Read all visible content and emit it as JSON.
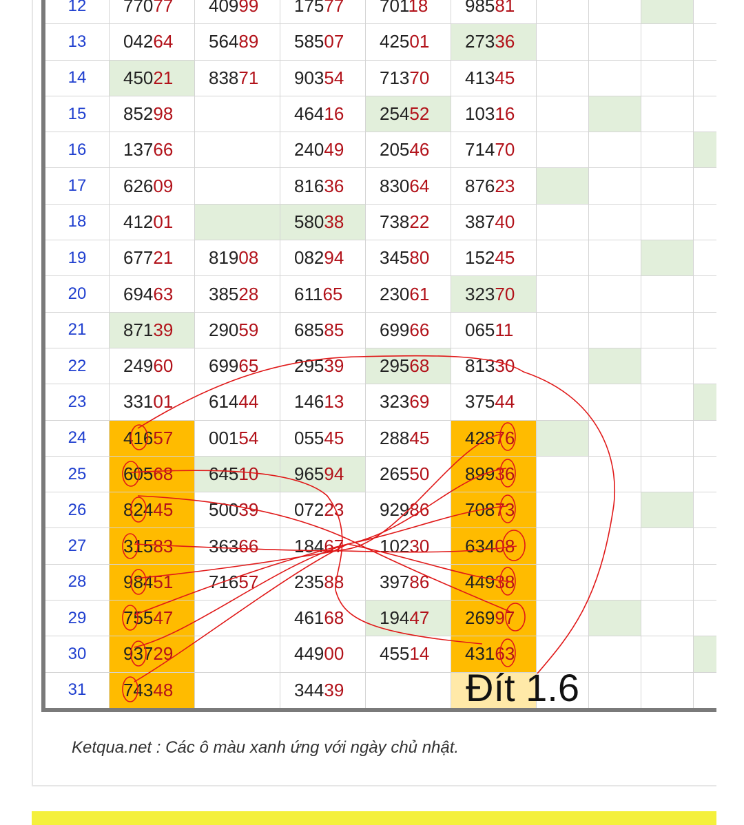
{
  "rows": [
    {
      "day": "12",
      "cells": [
        {
          "h": "770",
          "t": "77",
          "bg": ""
        },
        {
          "h": "409",
          "t": "99",
          "bg": ""
        },
        {
          "h": "175",
          "t": "77",
          "bg": ""
        },
        {
          "h": "701",
          "t": "18",
          "bg": ""
        },
        {
          "h": "985",
          "t": "81",
          "bg": ""
        }
      ],
      "extra": [
        "",
        "",
        "green",
        ""
      ]
    },
    {
      "day": "13",
      "cells": [
        {
          "h": "042",
          "t": "64",
          "bg": ""
        },
        {
          "h": "564",
          "t": "89",
          "bg": ""
        },
        {
          "h": "585",
          "t": "07",
          "bg": ""
        },
        {
          "h": "425",
          "t": "01",
          "bg": ""
        },
        {
          "h": "273",
          "t": "36",
          "bg": "green"
        }
      ],
      "extra": [
        "",
        "",
        "",
        ""
      ]
    },
    {
      "day": "14",
      "cells": [
        {
          "h": "450",
          "t": "21",
          "bg": "green"
        },
        {
          "h": "838",
          "t": "71",
          "bg": ""
        },
        {
          "h": "903",
          "t": "54",
          "bg": ""
        },
        {
          "h": "713",
          "t": "70",
          "bg": ""
        },
        {
          "h": "413",
          "t": "45",
          "bg": ""
        }
      ],
      "extra": [
        "",
        "",
        "",
        ""
      ]
    },
    {
      "day": "15",
      "cells": [
        {
          "h": "852",
          "t": "98",
          "bg": ""
        },
        {
          "h": "",
          "t": "",
          "bg": ""
        },
        {
          "h": "464",
          "t": "16",
          "bg": ""
        },
        {
          "h": "254",
          "t": "52",
          "bg": "green"
        },
        {
          "h": "103",
          "t": "16",
          "bg": ""
        }
      ],
      "extra": [
        "",
        "green",
        "",
        ""
      ]
    },
    {
      "day": "16",
      "cells": [
        {
          "h": "137",
          "t": "66",
          "bg": ""
        },
        {
          "h": "",
          "t": "",
          "bg": ""
        },
        {
          "h": "240",
          "t": "49",
          "bg": ""
        },
        {
          "h": "205",
          "t": "46",
          "bg": ""
        },
        {
          "h": "714",
          "t": "70",
          "bg": ""
        }
      ],
      "extra": [
        "",
        "",
        "",
        "green"
      ]
    },
    {
      "day": "17",
      "cells": [
        {
          "h": "626",
          "t": "09",
          "bg": ""
        },
        {
          "h": "",
          "t": "",
          "bg": ""
        },
        {
          "h": "816",
          "t": "36",
          "bg": ""
        },
        {
          "h": "830",
          "t": "64",
          "bg": ""
        },
        {
          "h": "876",
          "t": "23",
          "bg": ""
        }
      ],
      "extra": [
        "green",
        "",
        "",
        ""
      ]
    },
    {
      "day": "18",
      "cells": [
        {
          "h": "412",
          "t": "01",
          "bg": ""
        },
        {
          "h": "",
          "t": "",
          "bg": "green"
        },
        {
          "h": "580",
          "t": "38",
          "bg": "green"
        },
        {
          "h": "738",
          "t": "22",
          "bg": ""
        },
        {
          "h": "387",
          "t": "40",
          "bg": ""
        }
      ],
      "extra": [
        "",
        "",
        "",
        ""
      ]
    },
    {
      "day": "19",
      "cells": [
        {
          "h": "677",
          "t": "21",
          "bg": ""
        },
        {
          "h": "819",
          "t": "08",
          "bg": ""
        },
        {
          "h": "082",
          "t": "94",
          "bg": ""
        },
        {
          "h": "345",
          "t": "80",
          "bg": ""
        },
        {
          "h": "152",
          "t": "45",
          "bg": ""
        }
      ],
      "extra": [
        "",
        "",
        "green",
        ""
      ]
    },
    {
      "day": "20",
      "cells": [
        {
          "h": "694",
          "t": "63",
          "bg": ""
        },
        {
          "h": "385",
          "t": "28",
          "bg": ""
        },
        {
          "h": "611",
          "t": "65",
          "bg": ""
        },
        {
          "h": "230",
          "t": "61",
          "bg": ""
        },
        {
          "h": "323",
          "t": "70",
          "bg": "green"
        }
      ],
      "extra": [
        "",
        "",
        "",
        ""
      ]
    },
    {
      "day": "21",
      "cells": [
        {
          "h": "871",
          "t": "39",
          "bg": "green"
        },
        {
          "h": "290",
          "t": "59",
          "bg": ""
        },
        {
          "h": "685",
          "t": "85",
          "bg": ""
        },
        {
          "h": "699",
          "t": "66",
          "bg": ""
        },
        {
          "h": "065",
          "t": "11",
          "bg": ""
        }
      ],
      "extra": [
        "",
        "",
        "",
        ""
      ]
    },
    {
      "day": "22",
      "cells": [
        {
          "h": "249",
          "t": "60",
          "bg": ""
        },
        {
          "h": "699",
          "t": "65",
          "bg": ""
        },
        {
          "h": "295",
          "t": "39",
          "bg": ""
        },
        {
          "h": "295",
          "t": "68",
          "bg": "green"
        },
        {
          "h": "813",
          "t": "30",
          "bg": ""
        }
      ],
      "extra": [
        "",
        "green",
        "",
        ""
      ]
    },
    {
      "day": "23",
      "cells": [
        {
          "h": "331",
          "t": "01",
          "bg": ""
        },
        {
          "h": "614",
          "t": "44",
          "bg": ""
        },
        {
          "h": "146",
          "t": "13",
          "bg": ""
        },
        {
          "h": "323",
          "t": "69",
          "bg": ""
        },
        {
          "h": "375",
          "t": "44",
          "bg": ""
        }
      ],
      "extra": [
        "",
        "",
        "",
        "green"
      ]
    },
    {
      "day": "24",
      "cells": [
        {
          "h": "416",
          "t": "57",
          "bg": "orange"
        },
        {
          "h": "001",
          "t": "54",
          "bg": ""
        },
        {
          "h": "055",
          "t": "45",
          "bg": ""
        },
        {
          "h": "288",
          "t": "45",
          "bg": ""
        },
        {
          "h": "428",
          "t": "76",
          "bg": "orange"
        }
      ],
      "extra": [
        "green",
        "",
        "",
        ""
      ]
    },
    {
      "day": "25",
      "cells": [
        {
          "h": "605",
          "t": "68",
          "bg": "orange"
        },
        {
          "h": "645",
          "t": "10",
          "bg": "green"
        },
        {
          "h": "965",
          "t": "94",
          "bg": "green"
        },
        {
          "h": "265",
          "t": "50",
          "bg": ""
        },
        {
          "h": "899",
          "t": "36",
          "bg": "orange"
        }
      ],
      "extra": [
        "",
        "",
        "",
        ""
      ]
    },
    {
      "day": "26",
      "cells": [
        {
          "h": "824",
          "t": "45",
          "bg": "orange"
        },
        {
          "h": "500",
          "t": "39",
          "bg": ""
        },
        {
          "h": "072",
          "t": "23",
          "bg": ""
        },
        {
          "h": "929",
          "t": "86",
          "bg": ""
        },
        {
          "h": "708",
          "t": "73",
          "bg": "orange"
        }
      ],
      "extra": [
        "",
        "",
        "green",
        ""
      ]
    },
    {
      "day": "27",
      "cells": [
        {
          "h": "315",
          "t": "83",
          "bg": "orange"
        },
        {
          "h": "363",
          "t": "66",
          "bg": ""
        },
        {
          "h": "184",
          "t": "67",
          "bg": ""
        },
        {
          "h": "102",
          "t": "30",
          "bg": ""
        },
        {
          "h": "634",
          "t": "08",
          "bg": "orange"
        }
      ],
      "extra": [
        "",
        "",
        "",
        ""
      ]
    },
    {
      "day": "28",
      "cells": [
        {
          "h": "984",
          "t": "51",
          "bg": "orange"
        },
        {
          "h": "716",
          "t": "57",
          "bg": ""
        },
        {
          "h": "235",
          "t": "88",
          "bg": ""
        },
        {
          "h": "397",
          "t": "86",
          "bg": ""
        },
        {
          "h": "449",
          "t": "38",
          "bg": "orange"
        }
      ],
      "extra": [
        "",
        "",
        "",
        ""
      ]
    },
    {
      "day": "29",
      "cells": [
        {
          "h": "755",
          "t": "47",
          "bg": "orange"
        },
        {
          "h": "",
          "t": "",
          "bg": ""
        },
        {
          "h": "461",
          "t": "68",
          "bg": ""
        },
        {
          "h": "194",
          "t": "47",
          "bg": "green"
        },
        {
          "h": "269",
          "t": "97",
          "bg": "orange"
        }
      ],
      "extra": [
        "",
        "green",
        "",
        ""
      ]
    },
    {
      "day": "30",
      "cells": [
        {
          "h": "937",
          "t": "29",
          "bg": "orange"
        },
        {
          "h": "",
          "t": "",
          "bg": ""
        },
        {
          "h": "449",
          "t": "00",
          "bg": ""
        },
        {
          "h": "455",
          "t": "14",
          "bg": ""
        },
        {
          "h": "431",
          "t": "63",
          "bg": "orange"
        }
      ],
      "extra": [
        "",
        "",
        "",
        "green"
      ]
    },
    {
      "day": "31",
      "cells": [
        {
          "h": "743",
          "t": "48",
          "bg": "orange"
        },
        {
          "h": "",
          "t": "",
          "bg": ""
        },
        {
          "h": "344",
          "t": "39",
          "bg": ""
        },
        {
          "h": "",
          "t": "",
          "bg": ""
        },
        {
          "h": "",
          "t": "",
          "bg": "pale"
        }
      ],
      "extra": [
        "",
        "",
        "",
        ""
      ]
    }
  ],
  "annotation": {
    "label": "Đít 1.6"
  },
  "footer": {
    "note": "Ketqua.net : Các ô màu xanh ứng với ngày chủ nhật."
  },
  "colors": {
    "day": "#1f3fcf",
    "tail": "#b2121a",
    "green": "#e2efdb",
    "orange": "#ffbb00",
    "pale": "#ffe9a8",
    "ink": "#e01818"
  }
}
